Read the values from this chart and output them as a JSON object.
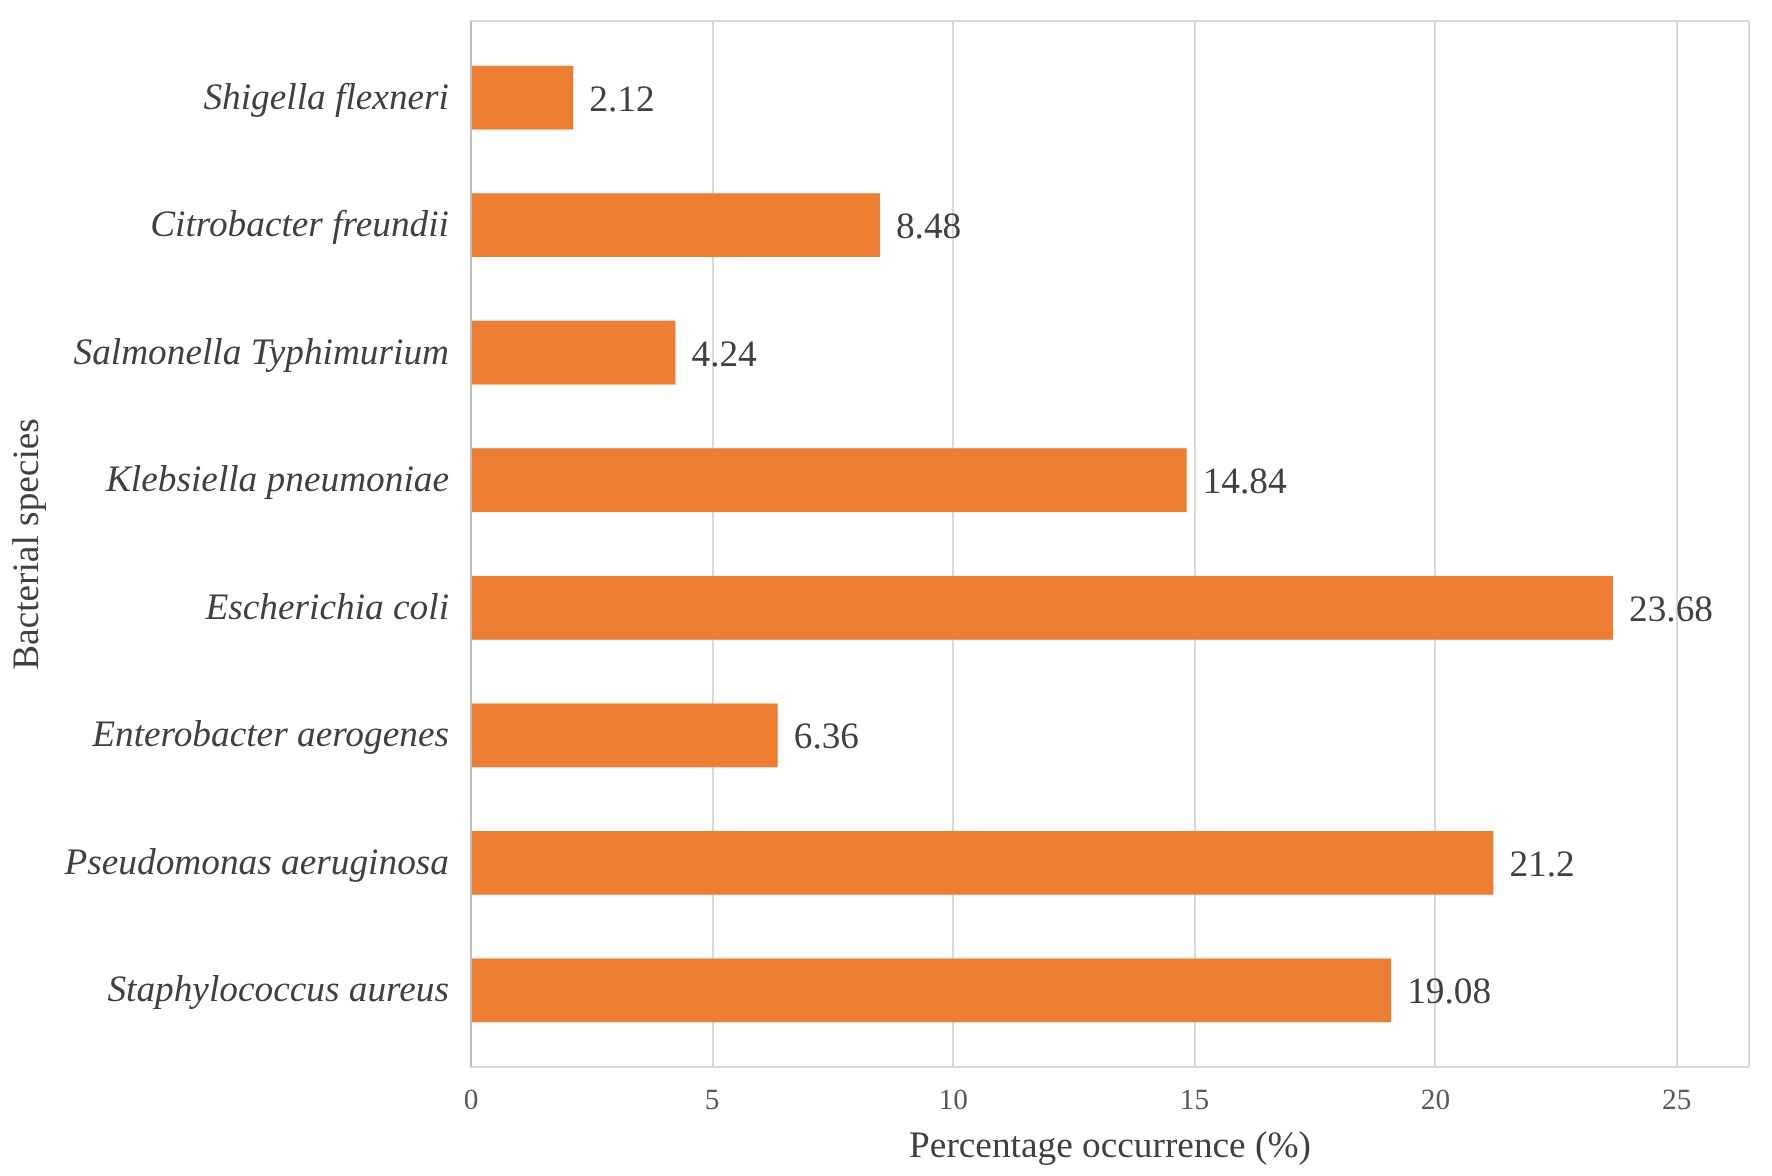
{
  "chart_data": {
    "type": "bar",
    "orientation": "horizontal",
    "xlabel": "Percentage occurrence (%)",
    "ylabel": "Bacterial species",
    "categories": [
      "Shigella flexneri",
      "Citrobacter freundii",
      "Salmonella Typhimurium",
      "Klebsiella pneumoniae",
      "Escherichia coli",
      "Enterobacter aerogenes",
      "Pseudomonas aeruginosa",
      "Staphylococcus aureus"
    ],
    "values": [
      2.12,
      8.48,
      4.24,
      14.84,
      23.68,
      6.36,
      21.2,
      19.08
    ],
    "color": "#ed7d31",
    "xlim": [
      0,
      26.5
    ],
    "xticks": [
      0,
      5,
      10,
      15,
      20,
      25
    ],
    "grid": "x",
    "data_labels": true
  }
}
